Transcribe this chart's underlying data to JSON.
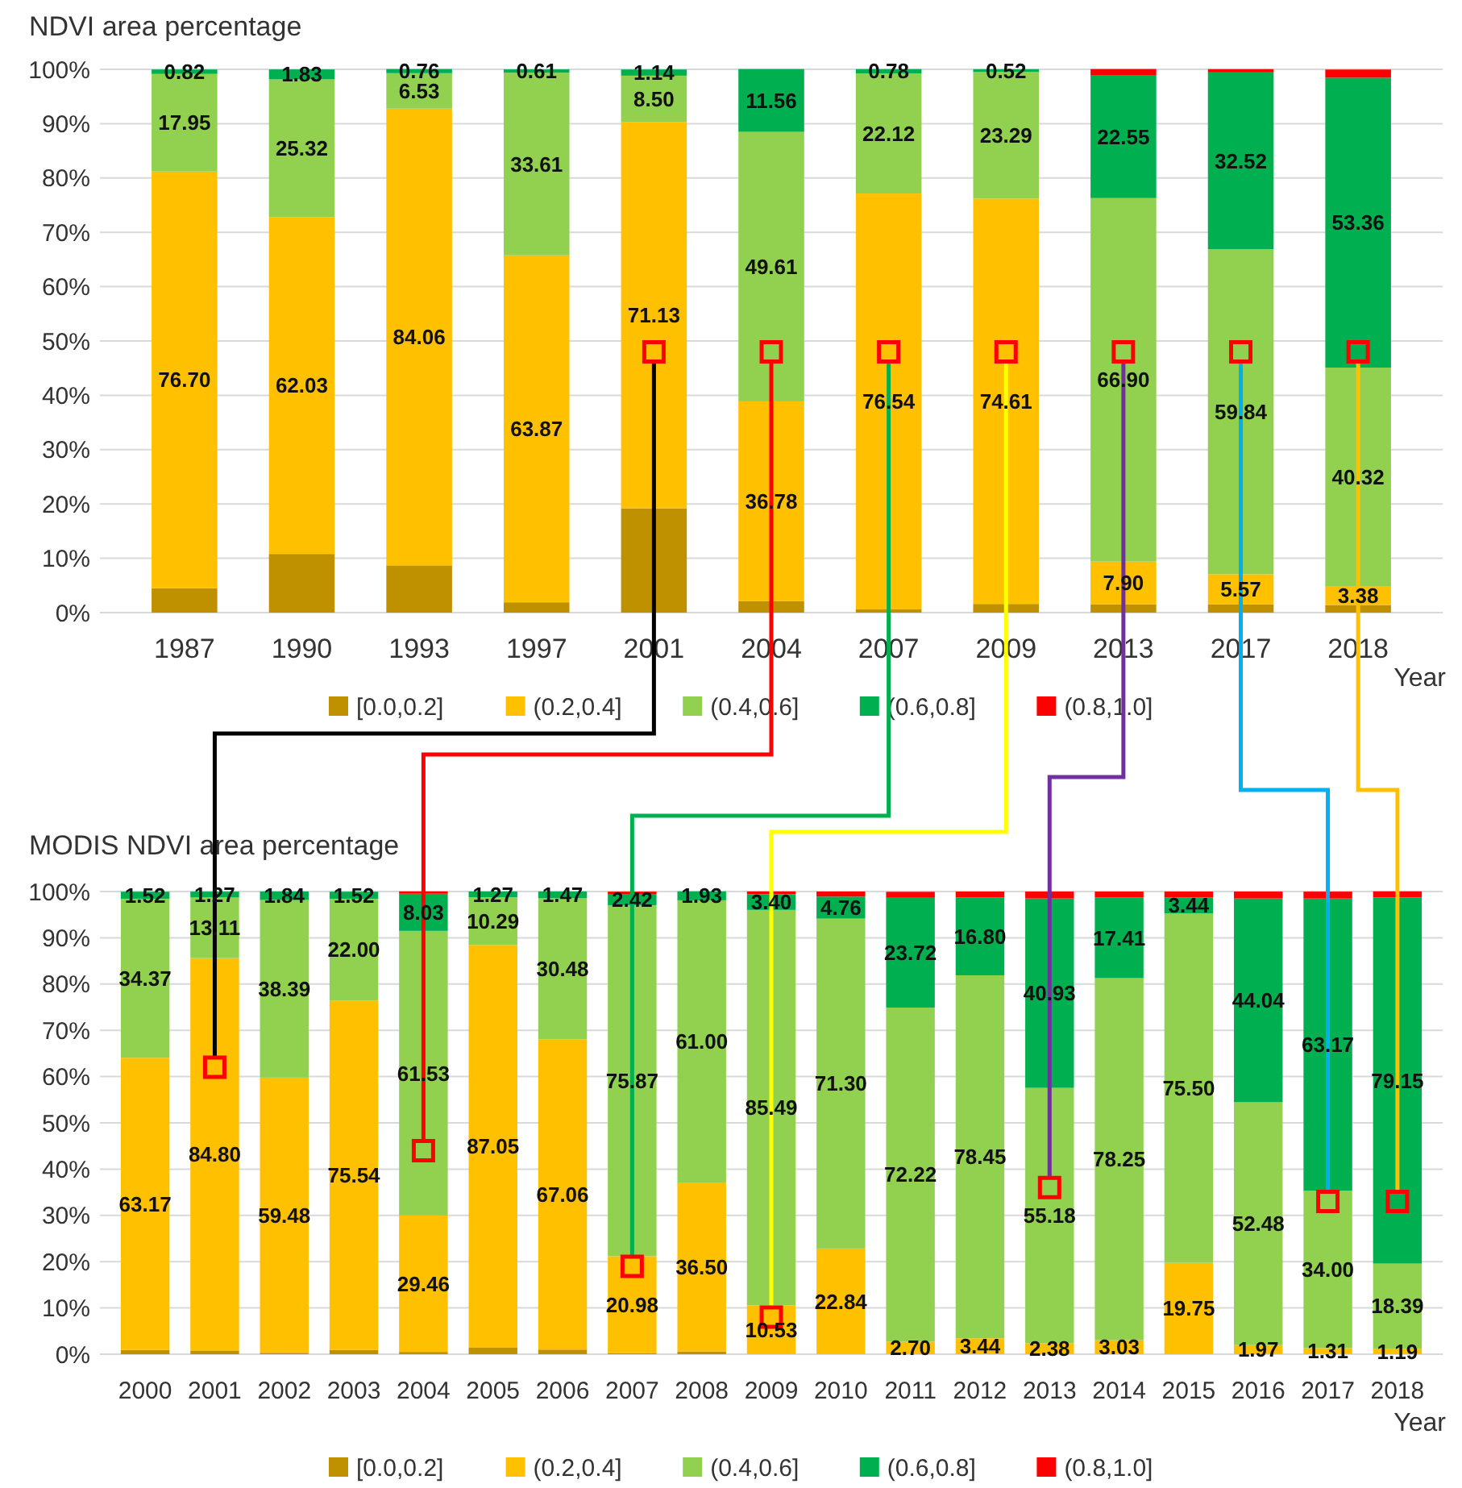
{
  "chart_data": [
    {
      "type": "bar",
      "stacked": true,
      "title": "NDVI area percentage",
      "xlabel": "Year",
      "categories": [
        "1987",
        "1990",
        "1993",
        "1997",
        "2001",
        "2004",
        "2007",
        "2009",
        "2013",
        "2017",
        "2018"
      ],
      "series": [
        {
          "name": "[0.0,0.2]",
          "color": "#bf9000",
          "values": [
            4.5,
            10.8,
            8.7,
            1.9,
            19.2,
            2.1,
            0.6,
            1.6,
            1.5,
            1.5,
            1.4
          ]
        },
        {
          "name": "(0.2,0.4]",
          "color": "#ffc000",
          "values": [
            76.7,
            62.03,
            84.06,
            63.87,
            71.13,
            36.78,
            76.54,
            74.61,
            7.9,
            5.57,
            3.38
          ],
          "value_labels": [
            "76.70",
            "62.03",
            "84.06",
            "63.87",
            "71.13",
            "36.78",
            "76.54",
            "74.61",
            "7.90",
            "5.57",
            "3.38"
          ]
        },
        {
          "name": "(0.4,0.6]",
          "color": "#92d050",
          "values": [
            17.95,
            25.32,
            6.53,
            33.61,
            8.5,
            49.61,
            22.12,
            23.29,
            66.9,
            59.84,
            40.32
          ],
          "value_labels": [
            "17.95",
            "25.32",
            "6.53",
            "33.61",
            "8.50",
            "49.61",
            "22.12",
            "23.29",
            "66.90",
            "59.84",
            "40.32"
          ]
        },
        {
          "name": "(0.6,0.8]",
          "color": "#00b050",
          "values": [
            0.82,
            1.83,
            0.76,
            0.61,
            1.14,
            11.56,
            0.78,
            0.52,
            22.55,
            32.52,
            53.36
          ],
          "value_labels": [
            "0.82",
            "1.83",
            "0.76",
            "0.61",
            "1.14",
            "11.56",
            "0.78",
            "0.52",
            "22.55",
            "32.52",
            "53.36"
          ]
        },
        {
          "name": "(0.8,1.0]",
          "color": "#ff0000",
          "values": [
            0,
            0,
            0,
            0,
            0,
            0,
            0,
            0,
            1.2,
            0.6,
            1.5
          ]
        }
      ],
      "ylim": [
        0,
        100
      ],
      "yticks": [
        {
          "value": 0,
          "label": "0%"
        },
        {
          "value": 10,
          "label": "10%"
        },
        {
          "value": 20,
          "label": "20%"
        },
        {
          "value": 30,
          "label": "30%"
        },
        {
          "value": 40,
          "label": "40%"
        },
        {
          "value": 50,
          "label": "50%"
        },
        {
          "value": 60,
          "label": "60%"
        },
        {
          "value": 70,
          "label": "70%"
        },
        {
          "value": 80,
          "label": "80%"
        },
        {
          "value": 90,
          "label": "90%"
        },
        {
          "value": 100,
          "label": "100%"
        }
      ],
      "grid": "y",
      "legend": "bottom"
    },
    {
      "type": "bar",
      "stacked": true,
      "title": "MODIS NDVI area percentage",
      "xlabel": "Year",
      "categories": [
        "2000",
        "2001",
        "2002",
        "2003",
        "2004",
        "2005",
        "2006",
        "2007",
        "2008",
        "2009",
        "2010",
        "2011",
        "2012",
        "2013",
        "2014",
        "2015",
        "2016",
        "2017",
        "2018"
      ],
      "series": [
        {
          "name": "[0.0,0.2]",
          "color": "#bf9000",
          "values": [
            0.9,
            0.8,
            0.3,
            0.9,
            0.5,
            1.4,
            1.0,
            0.2,
            0.6,
            0,
            0,
            0,
            0,
            0,
            0,
            0,
            0,
            0,
            0
          ]
        },
        {
          "name": "(0.2,0.4]",
          "color": "#ffc000",
          "values": [
            63.17,
            84.8,
            59.48,
            75.54,
            29.46,
            87.05,
            67.06,
            20.98,
            36.5,
            10.53,
            22.84,
            2.7,
            3.44,
            2.38,
            3.03,
            19.75,
            1.97,
            1.31,
            1.19
          ],
          "value_labels": [
            "63.17",
            "84.80",
            "59.48",
            "75.54",
            "29.46",
            "87.05",
            "67.06",
            "20.98",
            "36.50",
            "10.53",
            "22.84",
            "2.70",
            "3.44",
            "2.38",
            "3.03",
            "19.75",
            "1.97",
            "1.31",
            "1.19"
          ]
        },
        {
          "name": "(0.4,0.6]",
          "color": "#92d050",
          "values": [
            34.37,
            13.11,
            38.39,
            22.0,
            61.53,
            10.29,
            30.48,
            75.87,
            61.0,
            85.49,
            71.3,
            72.22,
            78.45,
            55.18,
            78.25,
            75.5,
            52.48,
            34.0,
            18.39
          ],
          "value_labels": [
            "34.37",
            "13.11",
            "38.39",
            "22.00",
            "61.53",
            "10.29",
            "30.48",
            "75.87",
            "61.00",
            "85.49",
            "71.30",
            "72.22",
            "78.45",
            "55.18",
            "78.25",
            "75.50",
            "52.48",
            "34.00",
            "18.39"
          ]
        },
        {
          "name": "(0.6,0.8]",
          "color": "#00b050",
          "values": [
            1.52,
            1.27,
            1.84,
            1.52,
            8.03,
            1.27,
            1.47,
            2.42,
            1.93,
            3.4,
            4.76,
            23.72,
            16.8,
            40.93,
            17.41,
            3.44,
            44.04,
            63.17,
            79.15
          ],
          "value_labels": [
            "1.52",
            "1.27",
            "1.84",
            "1.52",
            "8.03",
            "1.27",
            "1.47",
            "2.42",
            "1.93",
            "3.40",
            "4.76",
            "23.72",
            "16.80",
            "40.93",
            "17.41",
            "3.44",
            "44.04",
            "63.17",
            "79.15"
          ]
        },
        {
          "name": "(0.8,1.0]",
          "color": "#ff0000",
          "values": [
            0,
            0,
            0,
            0,
            0.5,
            0,
            0,
            0.5,
            0,
            0.6,
            1.1,
            1.3,
            1.3,
            1.5,
            1.3,
            1.3,
            1.5,
            1.5,
            1.3
          ]
        }
      ],
      "ylim": [
        0,
        100
      ],
      "yticks": [
        {
          "value": 0,
          "label": "0%"
        },
        {
          "value": 10,
          "label": "10%"
        },
        {
          "value": 20,
          "label": "20%"
        },
        {
          "value": 30,
          "label": "30%"
        },
        {
          "value": 40,
          "label": "40%"
        },
        {
          "value": 50,
          "label": "50%"
        },
        {
          "value": 60,
          "label": "60%"
        },
        {
          "value": 70,
          "label": "70%"
        },
        {
          "value": 80,
          "label": "80%"
        },
        {
          "value": 90,
          "label": "90%"
        },
        {
          "value": 100,
          "label": "100%"
        }
      ],
      "grid": "y",
      "legend": "bottom"
    }
  ]
}
